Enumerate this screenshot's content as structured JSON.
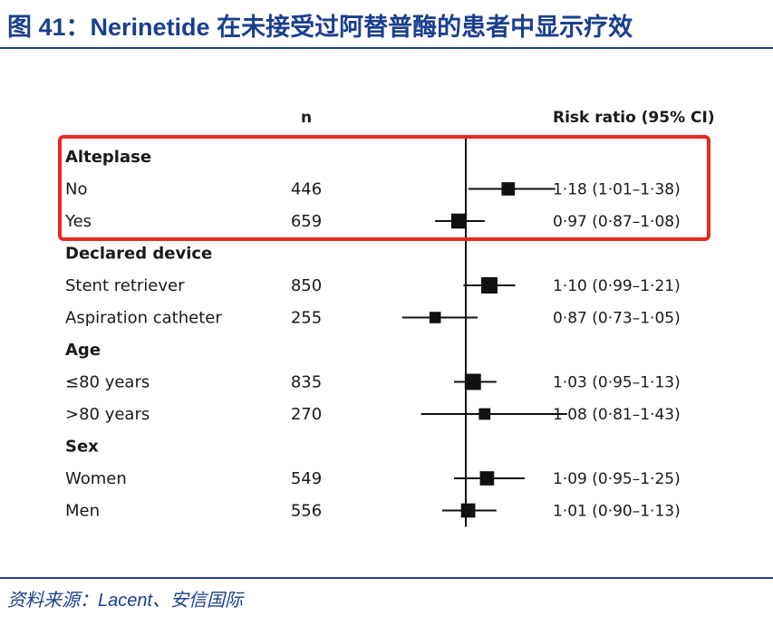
{
  "header": {
    "title": "图 41：Nerinetide 在未接受过阿替普酶的患者中显示疗效"
  },
  "footer": {
    "source_prefix": "资料来源：",
    "source_name": "Lacent",
    "source_suffix": "、安信国际"
  },
  "chart_data": {
    "type": "forest",
    "columns": {
      "n": "n",
      "risk_ratio": "Risk ratio (95% CI)"
    },
    "reference_value": 1.0,
    "x_range": [
      0.65,
      1.5
    ],
    "highlight_group": "Alteplase",
    "highlight_color": "#e8281e",
    "groups": [
      {
        "label": "Alteplase",
        "rows": [
          {
            "label": "No",
            "n": "446",
            "rr": 1.18,
            "lo": 1.01,
            "hi": 1.38,
            "ci_text": "1·18 (1·01–1·38)"
          },
          {
            "label": "Yes",
            "n": "659",
            "rr": 0.97,
            "lo": 0.87,
            "hi": 1.08,
            "ci_text": "0·97 (0·87–1·08)"
          }
        ]
      },
      {
        "label": "Declared device",
        "rows": [
          {
            "label": "Stent retriever",
            "n": "850",
            "rr": 1.1,
            "lo": 0.99,
            "hi": 1.21,
            "ci_text": "1·10 (0·99–1·21)"
          },
          {
            "label": "Aspiration catheter",
            "n": "255",
            "rr": 0.87,
            "lo": 0.73,
            "hi": 1.05,
            "ci_text": "0·87 (0·73–1·05)"
          }
        ]
      },
      {
        "label": "Age",
        "rows": [
          {
            "label": "≤80 years",
            "n": "835",
            "rr": 1.03,
            "lo": 0.95,
            "hi": 1.13,
            "ci_text": "1·03 (0·95–1·13)"
          },
          {
            "label": ">80 years",
            "n": "270",
            "rr": 1.08,
            "lo": 0.81,
            "hi": 1.43,
            "ci_text": "1·08 (0·81–1·43)"
          }
        ]
      },
      {
        "label": "Sex",
        "rows": [
          {
            "label": "Women",
            "n": "549",
            "rr": 1.09,
            "lo": 0.95,
            "hi": 1.25,
            "ci_text": "1·09 (0·95–1·25)"
          },
          {
            "label": "Men",
            "n": "556",
            "rr": 1.01,
            "lo": 0.9,
            "hi": 1.13,
            "ci_text": "1·01 (0·90–1·13)"
          }
        ]
      }
    ]
  }
}
